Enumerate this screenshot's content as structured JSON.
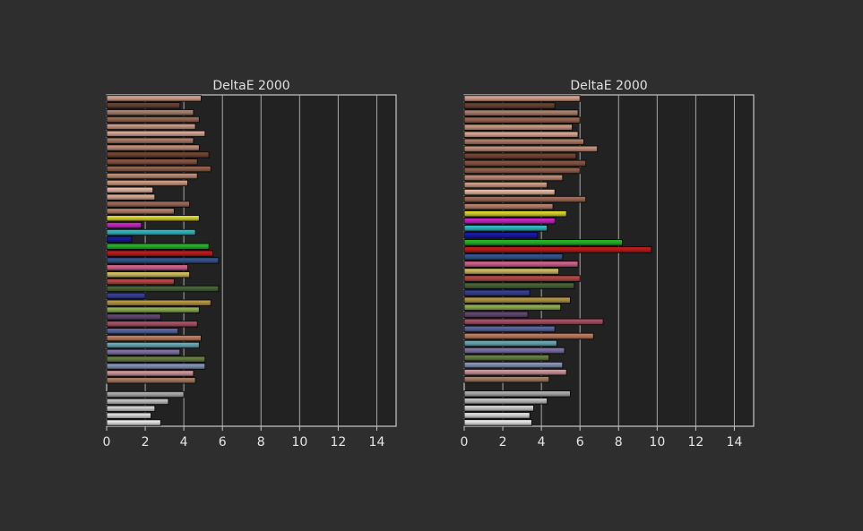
{
  "chart_data": [
    {
      "type": "bar",
      "orientation": "horizontal",
      "title": "DeltaE 2000",
      "xlim": [
        0,
        15
      ],
      "x_ticks": [
        0,
        2,
        4,
        6,
        8,
        10,
        12,
        14
      ],
      "grid": "vertical",
      "series": [
        {
          "values": [
            4.9,
            3.8,
            4.5,
            4.8,
            4.6,
            5.1,
            4.5,
            4.8,
            5.3,
            4.7,
            5.4,
            4.7,
            4.2,
            2.4,
            2.5,
            4.3,
            3.5,
            4.8,
            1.8,
            4.6,
            1.3,
            5.3,
            5.5,
            5.8,
            4.2,
            4.3,
            3.5,
            5.8,
            2.0,
            5.4,
            4.8,
            2.8,
            4.7,
            3.7,
            4.9,
            4.8,
            3.8,
            5.1,
            5.1,
            4.5,
            4.6,
            null,
            4.0,
            3.2,
            2.5,
            2.3,
            2.8
          ],
          "colors": [
            "#e6ad94",
            "#6e4735",
            "#b58c77",
            "#a66e58",
            "#d9a58e",
            "#e8b39c",
            "#b88672",
            "#cf9a84",
            "#7a4b36",
            "#8f5d48",
            "#9d6a55",
            "#c79780",
            "#dba690",
            "#f2c6b0",
            "#e8b6a0",
            "#a87260",
            "#c28b74",
            "#e8e236",
            "#d62ad0",
            "#34c6cf",
            "#1a1cb0",
            "#29c12c",
            "#cc1f1f",
            "#3a5c9a",
            "#e06b96",
            "#ddc96c",
            "#c0504d",
            "#4e6b3d",
            "#3a45a0",
            "#c2a24a",
            "#9bbb59",
            "#6a4d7c",
            "#b8566c",
            "#5f6fae",
            "#cf8462",
            "#6cb6c2",
            "#8a7ab6",
            "#6f8a45",
            "#8ea0c6",
            "#e0a0a8",
            "#b2876a",
            "#000000",
            "#b7b7b7",
            "#cfcfcf",
            "#dedede",
            "#ececec",
            "#f7f7f7"
          ]
        }
      ]
    },
    {
      "type": "bar",
      "orientation": "horizontal",
      "title": "DeltaE 2000",
      "xlim": [
        0,
        15
      ],
      "x_ticks": [
        0,
        2,
        4,
        6,
        8,
        10,
        12,
        14
      ],
      "grid": "vertical",
      "series": [
        {
          "values": [
            6.0,
            4.7,
            5.9,
            6.0,
            5.6,
            5.9,
            6.2,
            6.9,
            5.8,
            6.3,
            6.0,
            5.1,
            4.3,
            4.7,
            6.3,
            4.6,
            5.3,
            4.7,
            4.3,
            3.8,
            8.2,
            9.7,
            5.1,
            5.9,
            4.9,
            6.0,
            5.7,
            3.4,
            5.5,
            5.0,
            3.3,
            7.2,
            4.7,
            6.7,
            4.8,
            5.2,
            4.4,
            5.1,
            5.3,
            4.4,
            null,
            5.5,
            4.3,
            3.6,
            3.4,
            3.5
          ],
          "colors": [
            "#e6ad94",
            "#6e4735",
            "#b58c77",
            "#a66e58",
            "#d9a58e",
            "#e8b39c",
            "#b88672",
            "#cf9a84",
            "#7a4b36",
            "#8f5d48",
            "#9d6a55",
            "#c79780",
            "#dba690",
            "#f2c6b0",
            "#a87260",
            "#c28b74",
            "#e8e236",
            "#d62ad0",
            "#34c6cf",
            "#1a1cb0",
            "#29c12c",
            "#cc1f1f",
            "#3a5c9a",
            "#e06b96",
            "#ddc96c",
            "#c0504d",
            "#4e6b3d",
            "#3a45a0",
            "#c2a24a",
            "#9bbb59",
            "#6a4d7c",
            "#b8566c",
            "#5f6fae",
            "#cf8462",
            "#6cb6c2",
            "#8a7ab6",
            "#6f8a45",
            "#8ea0c6",
            "#e0a0a8",
            "#b2876a",
            "#000000",
            "#b7b7b7",
            "#cfcfcf",
            "#dedede",
            "#ececec",
            "#f7f7f7"
          ]
        }
      ]
    }
  ]
}
